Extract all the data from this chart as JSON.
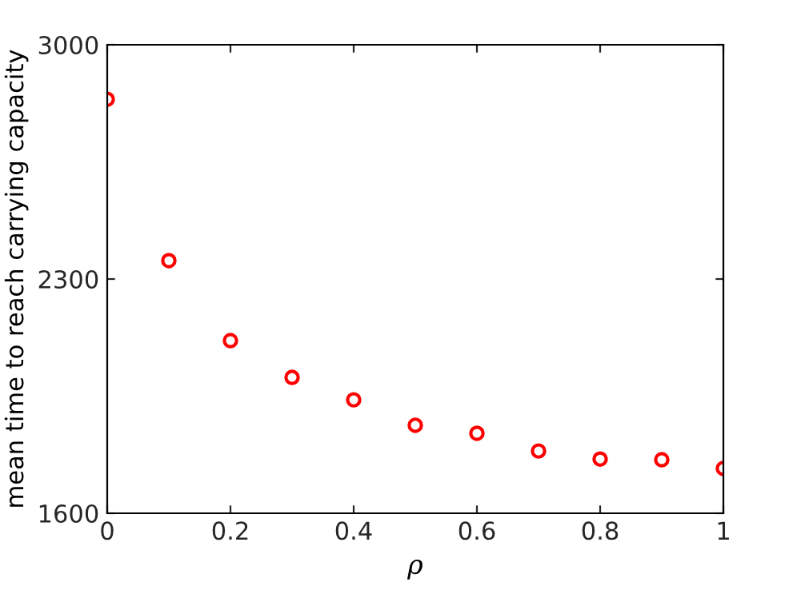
{
  "chart_data": {
    "type": "scatter",
    "xlabel": "ρ",
    "ylabel": "mean time to reach carrying capacity",
    "x": [
      0,
      0.1,
      0.2,
      0.3,
      0.4,
      0.5,
      0.6,
      0.7,
      0.8,
      0.9,
      1
    ],
    "series": [
      {
        "color": "#ff0000",
        "values": [
          2837,
          2355,
          2116,
          2006,
          1939,
          1863,
          1839,
          1786,
          1762,
          1760,
          1734
        ]
      }
    ],
    "xlim": [
      0,
      1
    ],
    "ylim": [
      1600,
      3000
    ],
    "xticks": [
      0,
      0.2,
      0.4,
      0.6,
      0.8,
      1
    ],
    "yticks": [
      1600,
      2300,
      3000
    ],
    "marker": "circle",
    "grid": false,
    "legend": false
  }
}
